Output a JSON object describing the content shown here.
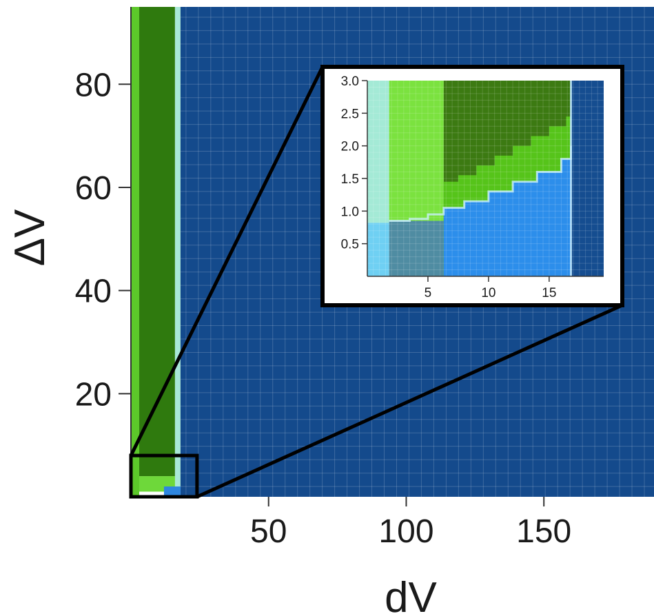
{
  "chart_data": [
    {
      "type": "heatmap",
      "title": "",
      "xlabel": "dV",
      "ylabel": "ΔV",
      "xlim": [
        0,
        190
      ],
      "ylim": [
        0,
        95
      ],
      "xticks": [
        50,
        100,
        150
      ],
      "yticks": [
        20,
        40,
        60,
        80
      ],
      "grid": true,
      "legend": "none",
      "regions": [
        {
          "name": "light-green-band",
          "color": "#5cc82a",
          "x": [
            0,
            3
          ],
          "y": [
            0,
            95
          ]
        },
        {
          "name": "dark-green-band",
          "color": "#2f7a0e",
          "x": [
            3,
            16
          ],
          "y": [
            4,
            95
          ]
        },
        {
          "name": "cyan-edge",
          "color": "#a9e8d7",
          "x": [
            16,
            18
          ],
          "y": [
            0,
            95
          ]
        },
        {
          "name": "blue-background",
          "color": "#144a8c",
          "x": [
            18,
            190
          ],
          "y": [
            0,
            95
          ]
        },
        {
          "name": "low-corner-green",
          "color": "#6ed83a",
          "x": [
            3,
            16
          ],
          "y": [
            1,
            4
          ]
        },
        {
          "name": "low-corner-blue",
          "color": "#2e86e0",
          "x": [
            12,
            18
          ],
          "y": [
            0,
            2
          ]
        }
      ],
      "zoom_box": {
        "x": [
          0,
          24
        ],
        "y": [
          0,
          8
        ]
      },
      "colors": {
        "background": "#144a8c",
        "dark_green": "#2f7a0e",
        "green": "#5cc82a",
        "cyan": "#a9e8d7",
        "blue": "#2e86e0"
      }
    },
    {
      "type": "heatmap",
      "title": "",
      "xlabel": "",
      "ylabel": "",
      "xlim": [
        0,
        19.5
      ],
      "ylim": [
        0,
        3.0
      ],
      "xticks": [
        5,
        10,
        15
      ],
      "yticks": [
        0.5,
        1.0,
        1.5,
        2.0,
        2.5,
        3.0
      ],
      "ytick_labels": [
        "0.5",
        "1.0",
        "1.5",
        "2.0",
        "2.5",
        "3.0"
      ],
      "grid": true,
      "legend": "none",
      "regions": [
        {
          "name": "pale-cyan",
          "color": "#a4ead6",
          "x": [
            0,
            1.8
          ],
          "y": [
            0.82,
            3.0
          ]
        },
        {
          "name": "light-blue",
          "color": "#6fd0f3",
          "x": [
            0,
            1.8
          ],
          "y": [
            0,
            0.82
          ]
        },
        {
          "name": "bright-green",
          "color": "#7be23f",
          "x": [
            1.8,
            6.3
          ],
          "y": [
            0.85,
            3.0
          ]
        },
        {
          "name": "grey-blue",
          "color": "#4f8ca2",
          "x": [
            1.8,
            6.3
          ],
          "y": [
            0,
            0.85
          ]
        },
        {
          "name": "dark-green",
          "color": "#3c7a12",
          "x": [
            6.3,
            16.8
          ],
          "y": [
            1.0,
            3.0
          ]
        },
        {
          "name": "green-stripe",
          "color": "#56c41a",
          "x": [
            6.3,
            16.8
          ],
          "y": [
            1.0,
            2.1
          ]
        },
        {
          "name": "bright-blue",
          "color": "#2c8eeb",
          "x": [
            6.3,
            16.8
          ],
          "y": [
            0,
            2.0
          ]
        },
        {
          "name": "navy",
          "color": "#154d90",
          "x": [
            16.8,
            19.5
          ],
          "y": [
            0,
            3.0
          ]
        }
      ],
      "boundaries": {
        "upper_x": [
          6.3,
          7.5,
          9,
          10.5,
          12,
          13.5,
          15,
          16.4
        ],
        "upper_y": [
          1.45,
          1.55,
          1.7,
          1.85,
          2.0,
          2.15,
          2.3,
          2.45
        ],
        "lower_x": [
          1.8,
          3.5,
          5,
          6.3,
          8,
          10,
          12,
          14,
          16,
          16.8
        ],
        "lower_y": [
          0.85,
          0.88,
          0.95,
          1.05,
          1.15,
          1.3,
          1.45,
          1.6,
          1.8,
          2.0
        ]
      }
    }
  ]
}
